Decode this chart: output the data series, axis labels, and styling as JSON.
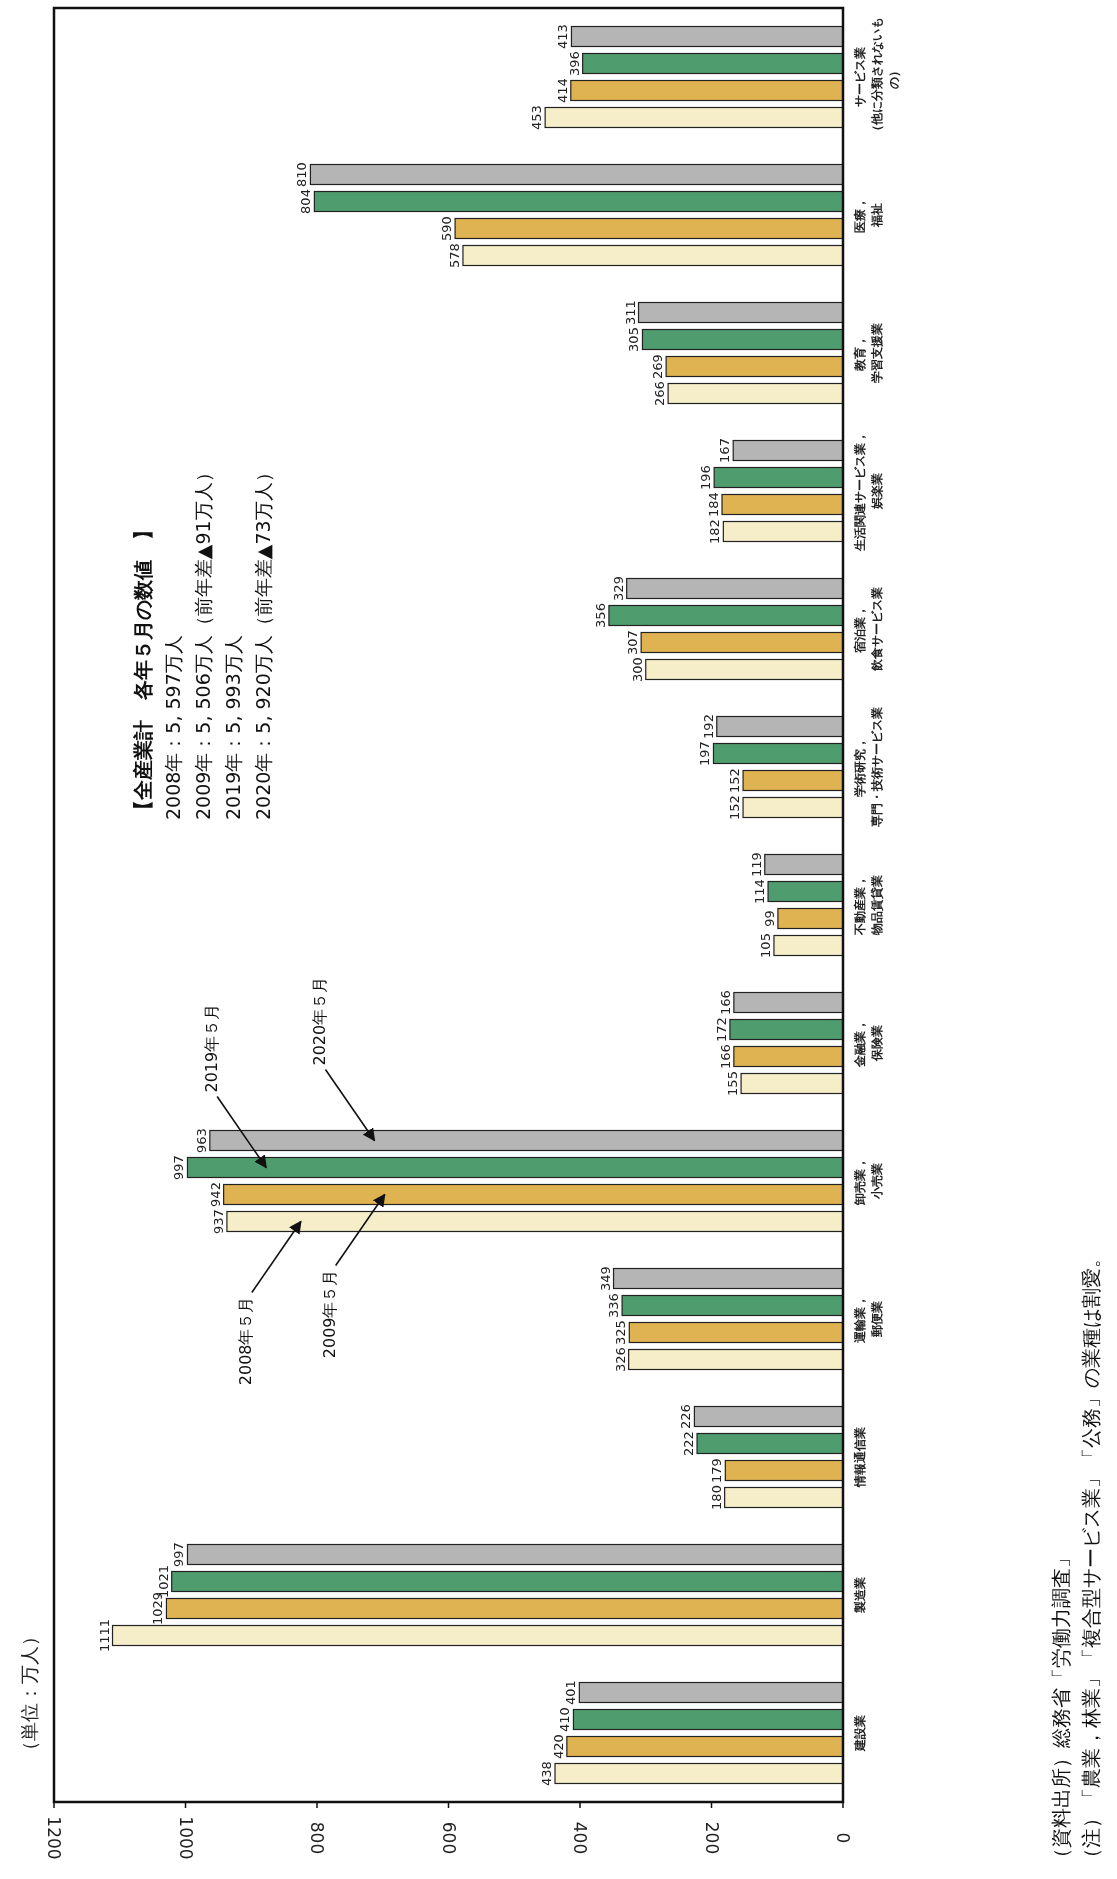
{
  "chart_data": {
    "type": "bar",
    "orientation": "horizontal",
    "title": "【全産業計　各年５月の数値　】",
    "subtitle": "2008年：5, 597万人\n2009年：5, 506万人（前年差▲91万人）\n2019年：5, 993万人\n2020年：5, 920万人（前年差▲73万人）",
    "ylabel": "（単位：万人）",
    "categories": [
      "サービス業（他に分類されないもの）",
      "医療，福祉",
      "教育，学習支援業",
      "生活関連サービス業，娯楽業",
      "宿泊業，飲食サービス業",
      "学術研究，専門・技術サービス業",
      "不動産業，物品賃貸業",
      "金融業，保険業",
      "卸売業，小売業",
      "運輸業，郵便業",
      "情報通信業",
      "製造業",
      "建設業"
    ],
    "series": [
      {
        "name": "2008年５月",
        "color": "#f6eec9",
        "values": [
          453,
          578,
          266,
          182,
          300,
          152,
          105,
          155,
          937,
          326,
          180,
          1111,
          438
        ]
      },
      {
        "name": "2009年５月",
        "color": "#dfb352",
        "values": [
          414,
          590,
          269,
          184,
          307,
          152,
          99,
          166,
          942,
          325,
          179,
          1029,
          420
        ]
      },
      {
        "name": "2019年５月",
        "color": "#4f9c6e",
        "values": [
          396,
          804,
          305,
          196,
          356,
          197,
          114,
          172,
          997,
          336,
          222,
          1021,
          410
        ]
      },
      {
        "name": "2020年５月",
        "color": "#b5b5b5",
        "values": [
          413,
          810,
          311,
          167,
          329,
          192,
          119,
          166,
          963,
          349,
          226,
          997,
          401
        ]
      }
    ],
    "xlim": [
      1200,
      0
    ],
    "xticks": [
      0,
      200,
      400,
      600,
      800,
      1000,
      1200
    ],
    "data_labels": true,
    "grid": false,
    "annotations": [
      "（資料出所）総務省「労働力調査」",
      "（注）「農業，林業」「複合型サービス業」「公務」の業種は割愛。"
    ]
  }
}
